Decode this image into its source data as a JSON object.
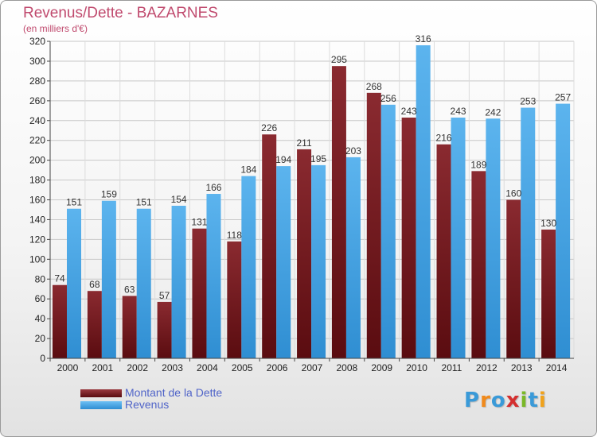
{
  "page": {
    "title": "Revenus/Dette - BAZARNES",
    "subtitle": "(en milliers d'€)"
  },
  "legend": [
    {
      "label": "Montant de la Dette",
      "color": "#7a2026"
    },
    {
      "label": "Revenus",
      "color": "#4aa6e6"
    }
  ],
  "logo": {
    "text": "Proxiti",
    "letters": [
      {
        "ch": "P",
        "color": "#3a9ad8"
      },
      {
        "ch": "r",
        "color": "#f08a1c"
      },
      {
        "ch": "o",
        "color": "#3a9ad8"
      },
      {
        "ch": "x",
        "color": "#d42f2f"
      },
      {
        "ch": "i",
        "color": "#7ab828"
      },
      {
        "ch": "t",
        "color": "#3a9ad8"
      },
      {
        "ch": "i",
        "color": "#f0a21c"
      }
    ]
  },
  "chart_data": {
    "type": "bar",
    "title": "Revenus/Dette - BAZARNES",
    "subtitle": "(en milliers d'€)",
    "categories": [
      "2000",
      "2001",
      "2002",
      "2003",
      "2004",
      "2005",
      "2006",
      "2007",
      "2008",
      "2009",
      "2010",
      "2011",
      "2012",
      "2013",
      "2014"
    ],
    "series": [
      {
        "name": "Montant de la Dette",
        "color": "#7a2026",
        "values": [
          74,
          68,
          63,
          57,
          131,
          118,
          226,
          211,
          295,
          268,
          243,
          216,
          189,
          160,
          130
        ]
      },
      {
        "name": "Revenus",
        "color": "#4aa6e6",
        "values": [
          151,
          159,
          151,
          154,
          166,
          184,
          194,
          195,
          203,
          256,
          316,
          243,
          242,
          253,
          257
        ]
      }
    ],
    "ylim": [
      0,
      320
    ],
    "ytick_step": 20,
    "grid": true,
    "legend_position": "bottom-left"
  }
}
